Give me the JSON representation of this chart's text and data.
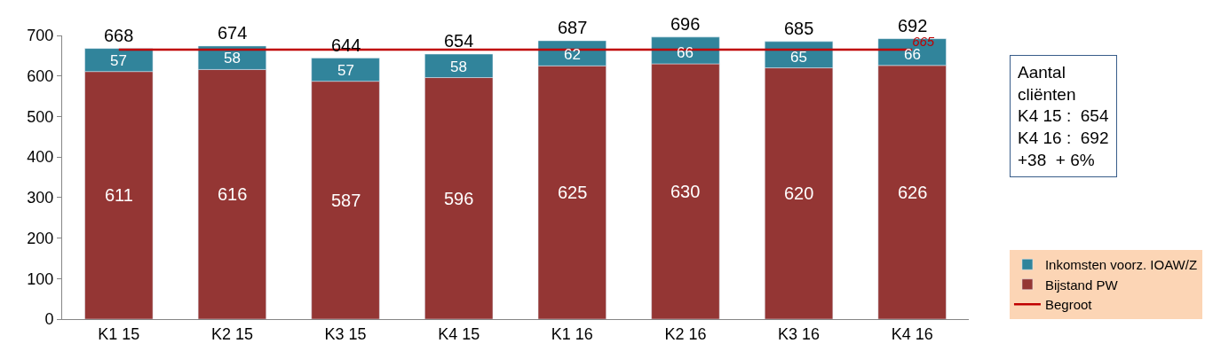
{
  "chart_data": {
    "type": "bar",
    "stacked": true,
    "categories": [
      "K1 15",
      "K2 15",
      "K3 15",
      "K4 15",
      "K1 16",
      "K2 16",
      "K3 16",
      "K4 16"
    ],
    "series": [
      {
        "name": "Bijstand PW",
        "color": "#943634",
        "values": [
          611,
          616,
          587,
          596,
          625,
          630,
          620,
          626
        ]
      },
      {
        "name": "Inkomsten voorz. IOAW/Z",
        "color": "#31849b",
        "values": [
          57,
          58,
          57,
          58,
          62,
          66,
          65,
          66
        ]
      },
      {
        "name": "Begroot",
        "type": "line",
        "color": "#c00000",
        "values": [
          665,
          665,
          665,
          665,
          665,
          665,
          665,
          665
        ],
        "value_labels": [
          null,
          null,
          null,
          null,
          null,
          null,
          null,
          "665"
        ]
      }
    ],
    "totals": [
      "668",
      "674",
      "644",
      "654",
      "687",
      "696",
      "685",
      "692"
    ],
    "data_labels": true,
    "ylim": [
      0,
      700
    ],
    "yticks": [
      0,
      100,
      200,
      300,
      400,
      500,
      600,
      700
    ],
    "legend": "right",
    "marker": "none",
    "annotations": [
      "Aantal\ncliënten\nK4 15 :  654\nK4 16 :  692\n+38  + 6%"
    ]
  }
}
